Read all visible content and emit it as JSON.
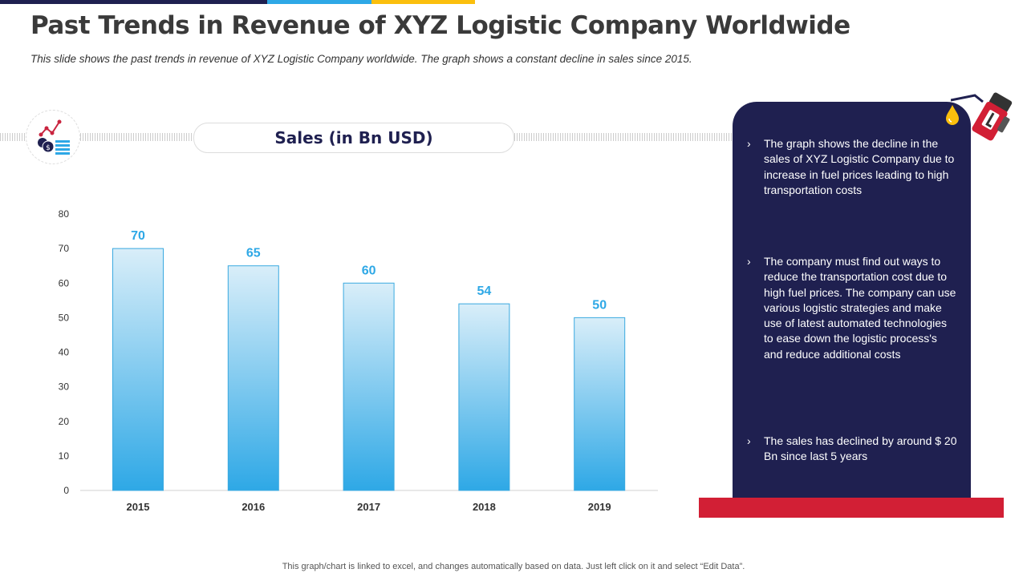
{
  "title": "Past Trends in Revenue of XYZ Logistic Company Worldwide",
  "subtitle": "This slide shows the past trends in revenue of XYZ Logistic Company worldwide.  The graph shows a constant decline in sales since 2015.",
  "colors": {
    "navy": "#1f2050",
    "blue": "#2ea8e6",
    "yellow": "#fbbf0d",
    "red": "#d21f35"
  },
  "chart_data": {
    "type": "bar",
    "title": "Sales (in Bn USD)",
    "categories": [
      "2015",
      "2016",
      "2017",
      "2018",
      "2019"
    ],
    "values": [
      70,
      65,
      60,
      54,
      50
    ],
    "yticks": [
      "0",
      "10",
      "20",
      "30",
      "40",
      "50",
      "60",
      "70",
      "80"
    ],
    "ylim": [
      0,
      80
    ],
    "grid": false,
    "legend": "none",
    "data_labels": true
  },
  "panel": {
    "bullets": [
      "The graph shows the decline in the sales of XYZ Logistic Company due to increase in fuel prices leading to high transportation  costs",
      "The company must find out ways to reduce the transportation cost due to high fuel prices. The company can use various logistic strategies and make use of latest automated technologies to ease down the logistic process's and reduce additional costs",
      "The sales has declined by around $ 20 Bn since last 5 years"
    ],
    "bullet_glyph": "›"
  },
  "footer": "This graph/chart is linked to excel, and changes automatically based on data. Just left click on it and select “Edit Data”."
}
